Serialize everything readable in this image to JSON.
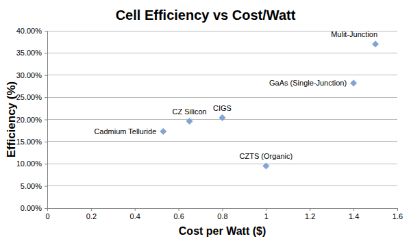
{
  "chart_data": {
    "type": "scatter",
    "title": "Cell Efficiency vs Cost/Watt",
    "x_label": "Cost per Watt ($)",
    "y_label": "Efficiency (%)",
    "x": [
      0.53,
      0.65,
      0.8,
      1.0,
      1.4,
      1.5
    ],
    "values": [
      17.3,
      19.6,
      20.4,
      9.5,
      28.2,
      37.0
    ],
    "point_labels": [
      "Cadmium Telluride",
      "CZ Silicon",
      "CIGS",
      "CZTS (Organic)",
      "GaAs (Single-Junction)",
      "Mulit-Junction"
    ],
    "color": "#7fa6d6",
    "marker": "diamond",
    "xlim": [
      0,
      1.6
    ],
    "xticks": [
      0,
      0.2,
      0.4,
      0.6,
      0.8,
      1,
      1.2,
      1.4,
      1.6
    ],
    "ylim": [
      0,
      40
    ],
    "yticks": [
      {
        "value": 0,
        "label": "0.00%"
      },
      {
        "value": 5,
        "label": "5.00%"
      },
      {
        "value": 10,
        "label": "10.00%"
      },
      {
        "value": 15,
        "label": "15.00%"
      },
      {
        "value": 20,
        "label": "20.00%"
      },
      {
        "value": 25,
        "label": "25.00%"
      },
      {
        "value": 30,
        "label": "30.00%"
      },
      {
        "value": 35,
        "label": "35.00%"
      },
      {
        "value": 40,
        "label": "40.00%"
      }
    ],
    "grid": true
  }
}
